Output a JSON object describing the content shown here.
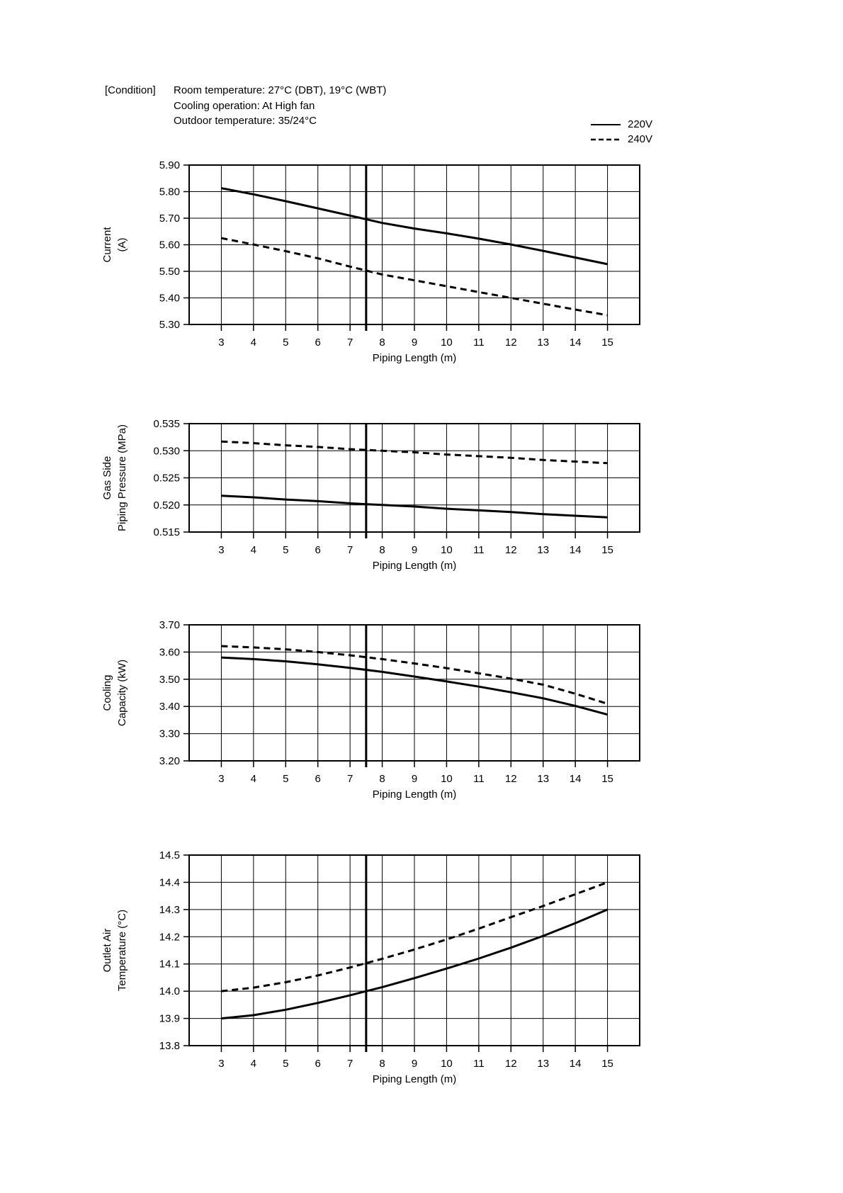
{
  "condition": {
    "label": "[Condition]",
    "lines": [
      "Room temperature: 27°C (DBT), 19°C (WBT)",
      "Cooling operation: At High fan",
      "Outdoor temperature: 35/24°C"
    ]
  },
  "legend": {
    "items": [
      {
        "label": "220V",
        "style": "solid"
      },
      {
        "label": "240V",
        "style": "dashed"
      }
    ]
  },
  "colors": {
    "foreground": "#000000",
    "background": "#ffffff"
  },
  "chart_data": [
    {
      "id": "current",
      "type": "line",
      "ylabel_lines": [
        "Current",
        "(A)"
      ],
      "ylabel": "Current (A)",
      "xlabel": "Piping Length (m)",
      "ylim": [
        5.3,
        5.9
      ],
      "ytick_step": 0.1,
      "y_decimals": 2,
      "xlim": [
        2,
        16
      ],
      "xticks": [
        3,
        4,
        5,
        6,
        7,
        8,
        9,
        10,
        11,
        12,
        13,
        14,
        15
      ],
      "grid": true,
      "highlight_x": 7.5,
      "x": [
        3,
        4,
        5,
        6,
        7,
        8,
        9,
        10,
        11,
        12,
        13,
        14,
        15
      ],
      "series": [
        {
          "name": "220V",
          "style": "solid",
          "values": [
            5.813,
            5.79,
            5.764,
            5.737,
            5.71,
            5.682,
            5.661,
            5.643,
            5.623,
            5.601,
            5.577,
            5.552,
            5.527
          ]
        },
        {
          "name": "240V",
          "style": "dashed",
          "values": [
            5.625,
            5.601,
            5.576,
            5.549,
            5.518,
            5.488,
            5.466,
            5.444,
            5.422,
            5.4,
            5.378,
            5.356,
            5.335
          ]
        }
      ]
    },
    {
      "id": "gas-side-piping-pressure",
      "type": "line",
      "ylabel_lines": [
        "Gas Side",
        "Piping Pressure (MPa)"
      ],
      "ylabel": "Gas Side Piping Pressure (MPa)",
      "xlabel": "Piping Length (m)",
      "ylim": [
        0.515,
        0.535
      ],
      "ytick_step": 0.005,
      "y_decimals": 3,
      "xlim": [
        2,
        16
      ],
      "xticks": [
        3,
        4,
        5,
        6,
        7,
        8,
        9,
        10,
        11,
        12,
        13,
        14,
        15
      ],
      "grid": true,
      "highlight_x": 7.5,
      "x": [
        3,
        4,
        5,
        6,
        7,
        8,
        9,
        10,
        11,
        12,
        13,
        14,
        15
      ],
      "series": [
        {
          "name": "220V",
          "style": "solid",
          "values": [
            0.5217,
            0.5214,
            0.521,
            0.5207,
            0.5203,
            0.52,
            0.5197,
            0.5193,
            0.519,
            0.5187,
            0.5183,
            0.518,
            0.5177
          ]
        },
        {
          "name": "240V",
          "style": "dashed",
          "values": [
            0.5317,
            0.5314,
            0.531,
            0.5307,
            0.5303,
            0.53,
            0.5297,
            0.5293,
            0.529,
            0.5287,
            0.5283,
            0.528,
            0.5277
          ]
        }
      ]
    },
    {
      "id": "cooling-capacity",
      "type": "line",
      "ylabel_lines": [
        "Cooling",
        "Capacity (kW)"
      ],
      "ylabel": "Cooling Capacity (kW)",
      "xlabel": "Piping Length (m)",
      "ylim": [
        3.2,
        3.7
      ],
      "ytick_step": 0.1,
      "y_decimals": 2,
      "xlim": [
        2,
        16
      ],
      "xticks": [
        3,
        4,
        5,
        6,
        7,
        8,
        9,
        10,
        11,
        12,
        13,
        14,
        15
      ],
      "grid": true,
      "highlight_x": 7.5,
      "x": [
        3,
        4,
        5,
        6,
        7,
        8,
        9,
        10,
        11,
        12,
        13,
        14,
        15
      ],
      "series": [
        {
          "name": "220V",
          "style": "solid",
          "values": [
            3.58,
            3.574,
            3.566,
            3.555,
            3.542,
            3.527,
            3.51,
            3.492,
            3.473,
            3.452,
            3.43,
            3.402,
            3.37
          ]
        },
        {
          "name": "240V",
          "style": "dashed",
          "values": [
            3.622,
            3.617,
            3.61,
            3.6,
            3.588,
            3.574,
            3.558,
            3.541,
            3.522,
            3.502,
            3.48,
            3.447,
            3.41
          ]
        }
      ]
    },
    {
      "id": "outlet-air-temperature",
      "type": "line",
      "ylabel_lines": [
        "Outlet Air",
        "Temperature (°C)"
      ],
      "ylabel": "Outlet Air Temperature (°C)",
      "xlabel": "Piping Length (m)",
      "ylim": [
        13.8,
        14.5
      ],
      "ytick_step": 0.1,
      "y_decimals": 1,
      "xlim": [
        2,
        16
      ],
      "xticks": [
        3,
        4,
        5,
        6,
        7,
        8,
        9,
        10,
        11,
        12,
        13,
        14,
        15
      ],
      "grid": true,
      "highlight_x": 7.5,
      "x": [
        3,
        4,
        5,
        6,
        7,
        8,
        9,
        10,
        11,
        12,
        13,
        14,
        15
      ],
      "series": [
        {
          "name": "220V",
          "style": "solid",
          "values": [
            13.9,
            13.912,
            13.932,
            13.957,
            13.985,
            14.015,
            14.048,
            14.083,
            14.12,
            14.16,
            14.203,
            14.25,
            14.3
          ]
        },
        {
          "name": "240V",
          "style": "dashed",
          "values": [
            14.0,
            14.013,
            14.033,
            14.058,
            14.087,
            14.119,
            14.153,
            14.19,
            14.23,
            14.272,
            14.313,
            14.356,
            14.4
          ]
        }
      ]
    }
  ]
}
